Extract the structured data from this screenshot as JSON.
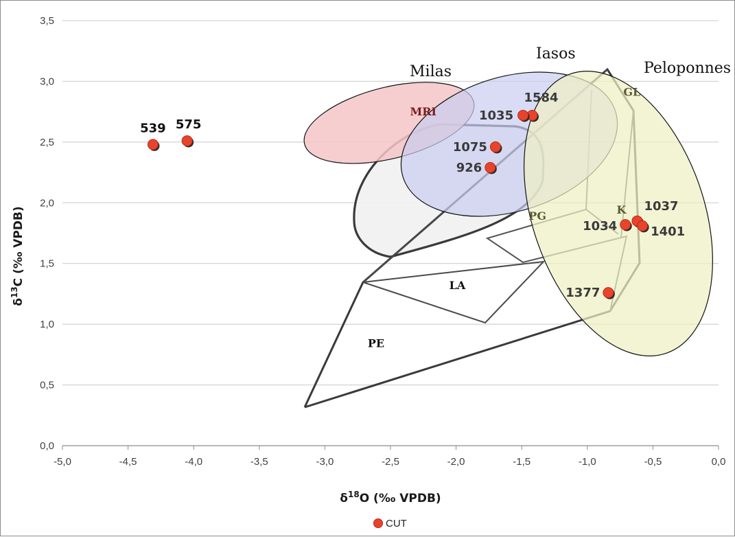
{
  "chart_data": {
    "type": "scatter",
    "xlabel": "δ¹⁸O (‰ VPDB)",
    "ylabel": "δ¹³C (‰ VPDB)",
    "xlim": [
      -5.0,
      0.0
    ],
    "ylim": [
      0.0,
      3.5
    ],
    "x_ticks": [
      "-5,0",
      "-4,5",
      "-4,0",
      "-3,5",
      "-3,0",
      "-2,5",
      "-2,0",
      "-1,5",
      "-1,0",
      "-0,5",
      "0,0"
    ],
    "y_ticks": [
      "0,0",
      "0,5",
      "1,0",
      "1,5",
      "2,0",
      "2,5",
      "3,0",
      "3,5"
    ],
    "grid": "horizontal",
    "legend": {
      "placement": "bottom-center",
      "entries": [
        "CUT"
      ]
    },
    "series": [
      {
        "name": "CUT",
        "color": "#e8442c",
        "points": [
          {
            "label": "539",
            "x": -4.31,
            "y": 2.48
          },
          {
            "label": "575",
            "x": -4.05,
            "y": 2.51
          },
          {
            "label": "1584",
            "x": -1.42,
            "y": 2.72
          },
          {
            "label": "1035",
            "x": -1.49,
            "y": 2.72
          },
          {
            "label": "1075",
            "x": -1.7,
            "y": 2.46
          },
          {
            "label": "926",
            "x": -1.74,
            "y": 2.29
          },
          {
            "label": "1037",
            "x": -0.62,
            "y": 1.85
          },
          {
            "label": "1034",
            "x": -0.71,
            "y": 1.82
          },
          {
            "label": "1401",
            "x": -0.58,
            "y": 1.81
          },
          {
            "label": "1377",
            "x": -0.84,
            "y": 1.26
          }
        ]
      }
    ],
    "regions": [
      {
        "name": "Milas",
        "color": "#f4c6c8"
      },
      {
        "name": "Iasos",
        "color": "#c9cdf0"
      },
      {
        "name": "Peloponnes",
        "color": "#eef0c4"
      }
    ],
    "fields": [
      {
        "name": "MRI",
        "x": -2.25,
        "y": 2.72,
        "color": "#7a1c1c"
      },
      {
        "name": "GL",
        "x": -0.66,
        "y": 2.88,
        "color": "#5b5a35"
      },
      {
        "name": "PG",
        "x": -1.38,
        "y": 1.86,
        "color": "#5b5a35"
      },
      {
        "name": "K",
        "x": -0.74,
        "y": 1.91,
        "color": "#5b5a35"
      },
      {
        "name": "LA",
        "x": -1.99,
        "y": 1.29,
        "color": "#111111"
      },
      {
        "name": "PE",
        "x": -2.61,
        "y": 0.81,
        "color": "#111111"
      }
    ]
  }
}
